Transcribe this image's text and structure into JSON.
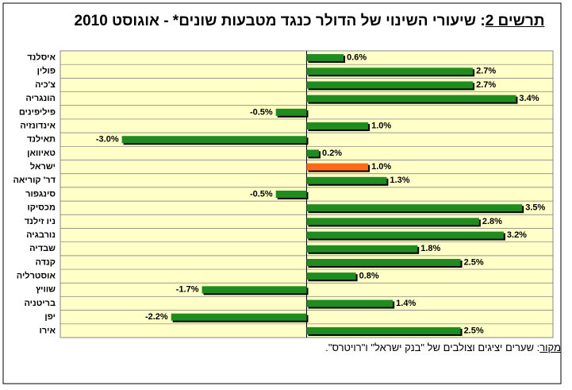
{
  "chart_data": {
    "type": "hbar",
    "title_prefix": "תרשים 2",
    "title": ": שיעורי השינוי של הדולר כנגד מטבעות שונים* - אוגוסט 2010",
    "source_prefix": "מקור",
    "source": ": שערים יציגים וצולבים של \"בנק ישראל\" ו\"רויטרס\".",
    "categories": [
      "איסלנד",
      "פולין",
      "צ'כיה",
      "הונגריה",
      "פיליפינים",
      "אינדונזיה",
      "תאילנד",
      "טאיוואן",
      "ישראל",
      "דר' קוריאה",
      "סינגפור",
      "מכסיקו",
      "ניו זילנד",
      "נורבגיה",
      "שבדיה",
      "קנדה",
      "אוסטרליה",
      "שוויץ",
      "בריטניה",
      "יפן",
      "אירו"
    ],
    "values": [
      0.6,
      2.7,
      2.7,
      3.4,
      -0.5,
      1.0,
      -3.0,
      0.2,
      1.0,
      1.3,
      -0.5,
      3.5,
      2.8,
      3.2,
      1.8,
      2.5,
      0.8,
      -1.7,
      1.4,
      -2.2,
      2.5
    ],
    "value_labels": [
      "0.6%",
      "2.7%",
      "2.7%",
      "3.4%",
      "-0.5%",
      "1.0%",
      "-3.0%",
      "0.2%",
      "1.0%",
      "1.3%",
      "-0.5%",
      "3.5%",
      "2.8%",
      "3.2%",
      "1.8%",
      "2.5%",
      "0.8%",
      "-1.7%",
      "1.4%",
      "-2.2%",
      "2.5%"
    ],
    "colors": [
      "#1e8c1e",
      "#1e8c1e",
      "#1e8c1e",
      "#1e8c1e",
      "#1e8c1e",
      "#1e8c1e",
      "#1e8c1e",
      "#1e8c1e",
      "#ff6a1a",
      "#1e8c1e",
      "#1e8c1e",
      "#1e8c1e",
      "#1e8c1e",
      "#1e8c1e",
      "#1e8c1e",
      "#1e8c1e",
      "#1e8c1e",
      "#1e8c1e",
      "#1e8c1e",
      "#1e8c1e",
      "#1e8c1e"
    ],
    "xlim": [
      -4,
      4
    ],
    "grid": true
  }
}
